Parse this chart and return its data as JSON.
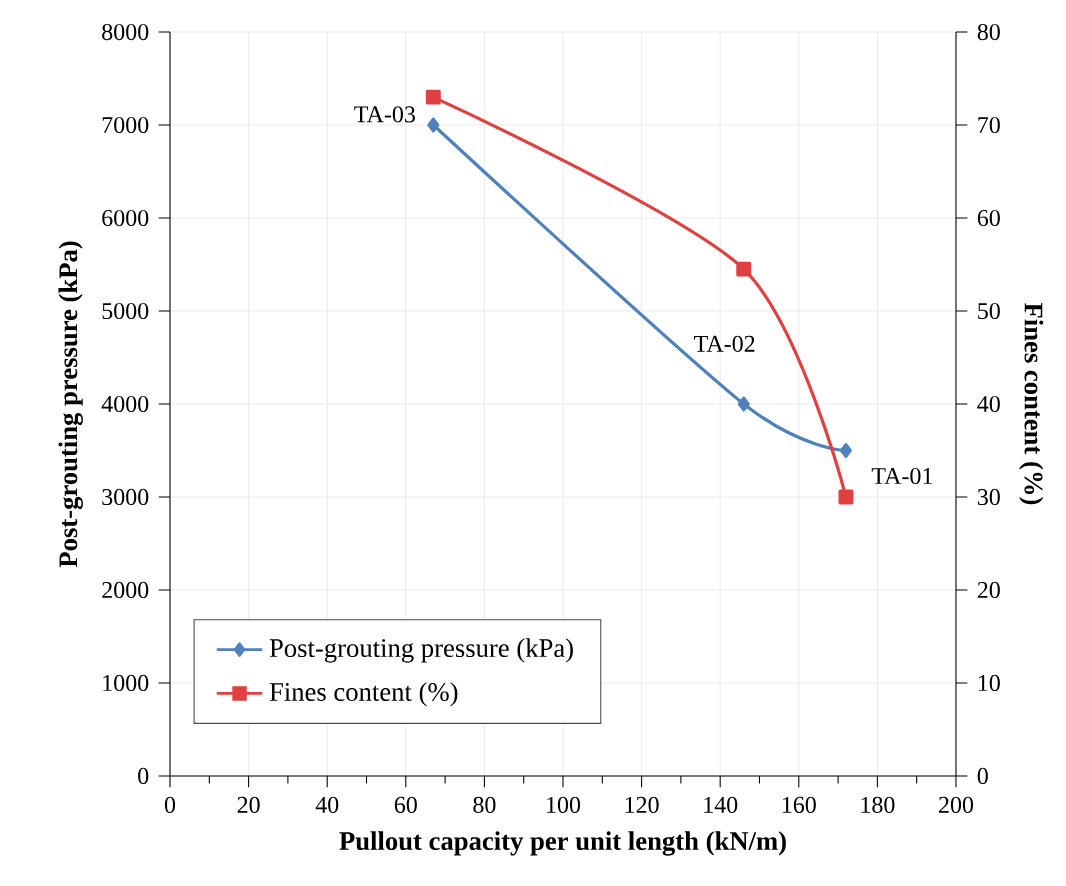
{
  "chart_data": {
    "type": "line",
    "xlabel": "Pullout capacity per unit length (kN/m)",
    "ylabel": "Post-grouting pressure (kPa)",
    "y2label": "Fines content (%)",
    "x": [
      67,
      146,
      172
    ],
    "series": [
      {
        "name": "Post-grouting pressure (kPa)",
        "color": "#4f81bd",
        "values": [
          7000,
          4000,
          3500
        ],
        "marker": "diamond"
      },
      {
        "name": "Fines content (%)",
        "color": "#e0403f",
        "values": [
          73,
          54.5,
          30
        ],
        "marker": "square",
        "axis": "y2"
      }
    ],
    "xlim": [
      0,
      200
    ],
    "xticks": [
      0,
      20,
      40,
      60,
      80,
      100,
      120,
      140,
      160,
      180,
      200
    ],
    "ylim": [
      0,
      8000
    ],
    "yticks": [
      0,
      1000,
      2000,
      3000,
      4000,
      5000,
      6000,
      7000,
      8000
    ],
    "y2lim": [
      0,
      80
    ],
    "y2ticks": [
      0,
      10,
      20,
      30,
      40,
      50,
      60,
      70,
      80
    ],
    "annotations": [
      {
        "text": "TA-03",
        "x": 67,
        "y": 7000
      },
      {
        "text": "TA-02",
        "x": 146,
        "y": 4000
      },
      {
        "text": "TA-01",
        "x": 172,
        "y": 3500
      }
    ],
    "grid": true,
    "legend": "bottom left",
    "line_style": "solid"
  }
}
